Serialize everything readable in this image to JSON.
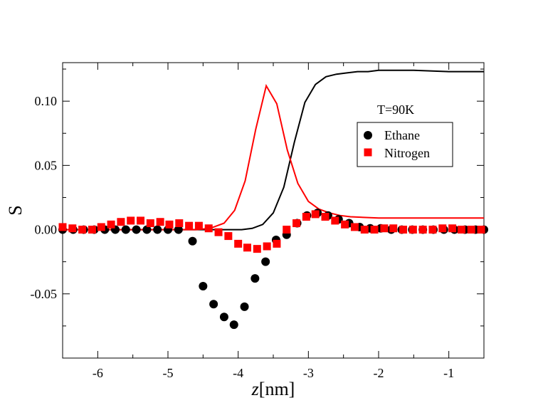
{
  "chart_data": {
    "type": "scatter",
    "title": "",
    "xlabel_italic": "z",
    "xlabel_unit": "[nm]",
    "ylabel": "S",
    "xlim": [
      -6.5,
      -0.5
    ],
    "ylim": [
      -0.1,
      0.13
    ],
    "xticks": [
      -6,
      -5,
      -4,
      -3,
      -2,
      -1
    ],
    "xtick_labels": [
      "-6",
      "-5",
      "-4",
      "-3",
      "-2",
      "-1"
    ],
    "yticks": [
      -0.05,
      0.0,
      0.05,
      0.1
    ],
    "ytick_labels": [
      "-0.05",
      "0.00",
      "0.05",
      "0.10"
    ],
    "annotation": "T=90K",
    "legend": {
      "position": "upper-right",
      "entries": [
        "Ethane",
        "Nitrogen"
      ]
    },
    "series": [
      {
        "name": "Ethane",
        "kind": "markers",
        "marker": "circle",
        "color": "#000000",
        "x": [
          -6.5,
          -6.35,
          -6.2,
          -6.05,
          -5.9,
          -5.75,
          -5.6,
          -5.45,
          -5.3,
          -5.15,
          -5.0,
          -4.85,
          -4.65,
          -4.5,
          -4.35,
          -4.2,
          -4.06,
          -3.91,
          -3.76,
          -3.61,
          -3.46,
          -3.31,
          -3.16,
          -3.02,
          -2.87,
          -2.72,
          -2.57,
          -2.42,
          -2.27,
          -2.12,
          -1.97,
          -1.82,
          -1.67,
          -1.52,
          -1.37,
          -1.22,
          -1.07,
          -0.92,
          -0.77,
          -0.62,
          -0.5
        ],
        "y": [
          0.0,
          0.0,
          0.0,
          0.0,
          0.0,
          0.0,
          0.0,
          0.0,
          0.0,
          0.0,
          0.0,
          0.0,
          -0.009,
          -0.044,
          -0.058,
          -0.068,
          -0.074,
          -0.06,
          -0.038,
          -0.025,
          -0.008,
          -0.004,
          0.005,
          0.011,
          0.013,
          0.011,
          0.008,
          0.005,
          0.002,
          0.001,
          0.001,
          0.0,
          0.0,
          0.0,
          0.0,
          0.0,
          0.0,
          0.0,
          0.0,
          0.0,
          0.0
        ]
      },
      {
        "name": "Nitrogen",
        "kind": "markers",
        "marker": "square",
        "color": "#ff0000",
        "x": [
          -6.5,
          -6.36,
          -6.22,
          -6.08,
          -5.95,
          -5.81,
          -5.67,
          -5.53,
          -5.39,
          -5.25,
          -5.11,
          -4.98,
          -4.84,
          -4.7,
          -4.56,
          -4.42,
          -4.28,
          -4.14,
          -4.0,
          -3.87,
          -3.73,
          -3.59,
          -3.45,
          -3.31,
          -3.17,
          -3.03,
          -2.9,
          -2.76,
          -2.62,
          -2.48,
          -2.34,
          -2.2,
          -2.06,
          -1.92,
          -1.79,
          -1.65,
          -1.51,
          -1.37,
          -1.23,
          -1.09,
          -0.95,
          -0.82,
          -0.68,
          -0.54
        ],
        "y": [
          0.002,
          0.001,
          0.0,
          0.0,
          0.002,
          0.004,
          0.006,
          0.007,
          0.007,
          0.005,
          0.006,
          0.004,
          0.005,
          0.003,
          0.003,
          0.001,
          -0.002,
          -0.005,
          -0.011,
          -0.014,
          -0.015,
          -0.013,
          -0.011,
          0.0,
          0.005,
          0.01,
          0.012,
          0.01,
          0.007,
          0.004,
          0.002,
          0.0,
          0.0,
          0.001,
          0.001,
          0.0,
          0.0,
          0.0,
          0.0,
          0.001,
          0.001,
          0.0,
          0.0,
          0.0
        ]
      },
      {
        "name": "Ethane (line)",
        "kind": "line",
        "color": "#000000",
        "x": [
          -6.5,
          -4.1,
          -3.95,
          -3.8,
          -3.65,
          -3.5,
          -3.35,
          -3.2,
          -3.05,
          -2.9,
          -2.75,
          -2.6,
          -2.45,
          -2.3,
          -2.15,
          -2.0,
          -1.5,
          -1.0,
          -0.5
        ],
        "y": [
          0.0,
          0.0,
          0.0,
          0.001,
          0.004,
          0.013,
          0.033,
          0.068,
          0.099,
          0.113,
          0.119,
          0.121,
          0.122,
          0.123,
          0.123,
          0.124,
          0.124,
          0.123,
          0.123
        ]
      },
      {
        "name": "Nitrogen (line)",
        "kind": "line",
        "color": "#ff0000",
        "x": [
          -6.5,
          -4.6,
          -4.4,
          -4.2,
          -4.05,
          -3.9,
          -3.75,
          -3.6,
          -3.45,
          -3.3,
          -3.15,
          -3.0,
          -2.85,
          -2.7,
          -2.55,
          -2.4,
          -2.0,
          -1.5,
          -1.0,
          -0.5
        ],
        "y": [
          0.0,
          0.0,
          0.001,
          0.005,
          0.015,
          0.038,
          0.078,
          0.112,
          0.098,
          0.062,
          0.036,
          0.022,
          0.016,
          0.013,
          0.011,
          0.01,
          0.009,
          0.009,
          0.009,
          0.009
        ]
      }
    ]
  }
}
